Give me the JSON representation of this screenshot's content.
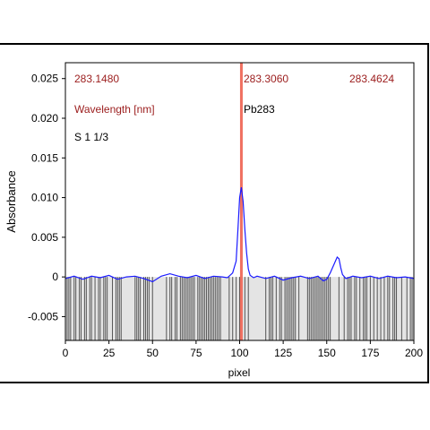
{
  "chart_data": {
    "type": "line",
    "xlabel": "pixel",
    "ylabel": "Absorbance",
    "xlim": [
      0,
      200
    ],
    "ylim": [
      -0.008,
      0.027
    ],
    "xticks": [
      0,
      25,
      50,
      75,
      100,
      125,
      150,
      175,
      200
    ],
    "yticks": [
      {
        "v": 0.025,
        "label": "0.025"
      },
      {
        "v": 0.02,
        "label": "0.020"
      },
      {
        "v": 0.015,
        "label": "0.015"
      },
      {
        "v": 0.01,
        "label": "0.010"
      },
      {
        "v": 0.005,
        "label": "0.005"
      },
      {
        "v": 0,
        "label": "0"
      },
      {
        "v": -0.005,
        "label": "-0.005"
      }
    ],
    "wavelength_labels": {
      "left": "283.1480",
      "center": "283.3060",
      "right": "283.4624"
    },
    "annotations": {
      "unit": "Wavelength [nm]",
      "element": "Pb283",
      "sample": "S 1 1/3"
    },
    "marker_x": 101,
    "series": [
      {
        "points": [
          [
            0,
            -0.0002
          ],
          [
            5,
            0.0001
          ],
          [
            10,
            -0.0003
          ],
          [
            15,
            0.0001
          ],
          [
            20,
            -0.0001
          ],
          [
            25,
            0.0002
          ],
          [
            30,
            -0.0003
          ],
          [
            35,
            0.0
          ],
          [
            40,
            0.0001
          ],
          [
            45,
            -0.0002
          ],
          [
            50,
            -0.0006
          ],
          [
            55,
            0.0001
          ],
          [
            60,
            0.0004
          ],
          [
            65,
            0.0001
          ],
          [
            70,
            -0.0001
          ],
          [
            75,
            0.0002
          ],
          [
            80,
            -0.0002
          ],
          [
            85,
            0.0001
          ],
          [
            90,
            0.0
          ],
          [
            93,
            -0.0001
          ],
          [
            96,
            0.0005
          ],
          [
            98,
            0.002
          ],
          [
            99,
            0.006
          ],
          [
            100,
            0.01
          ],
          [
            101,
            0.0113
          ],
          [
            102,
            0.0095
          ],
          [
            103,
            0.006
          ],
          [
            104,
            0.003
          ],
          [
            105,
            0.001
          ],
          [
            106,
            0.0002
          ],
          [
            108,
            -0.0001
          ],
          [
            110,
            0.0001
          ],
          [
            115,
            -0.0002
          ],
          [
            120,
            0.0001
          ],
          [
            125,
            -0.0004
          ],
          [
            130,
            -0.0001
          ],
          [
            135,
            0.0001
          ],
          [
            140,
            -0.0002
          ],
          [
            145,
            0.0001
          ],
          [
            148,
            -0.0005
          ],
          [
            150,
            -0.0003
          ],
          [
            152,
            0.0005
          ],
          [
            154,
            0.0015
          ],
          [
            156,
            0.0025
          ],
          [
            157,
            0.0023
          ],
          [
            158,
            0.0012
          ],
          [
            159,
            0.0003
          ],
          [
            161,
            -0.0002
          ],
          [
            165,
            0.0001
          ],
          [
            170,
            -0.0001
          ],
          [
            175,
            0.0001
          ],
          [
            180,
            -0.0002
          ],
          [
            185,
            0.0001
          ],
          [
            190,
            -0.0001
          ],
          [
            195,
            0.0
          ],
          [
            200,
            -0.0002
          ]
        ]
      }
    ],
    "baseline_bars_x": [
      1,
      2,
      3,
      5,
      6,
      8,
      9,
      11,
      12,
      14,
      15,
      17,
      19,
      20,
      22,
      23,
      24,
      27,
      29,
      30,
      31,
      32,
      40,
      41,
      42,
      43,
      45,
      46,
      47,
      48,
      50,
      58,
      60,
      61,
      63,
      64,
      66,
      67,
      68,
      69,
      70,
      71,
      72,
      73,
      74,
      76,
      77,
      78,
      79,
      80,
      81,
      82,
      83,
      84,
      85,
      86,
      87,
      88,
      89,
      94,
      96,
      98,
      100,
      103,
      105,
      115,
      117,
      118,
      119,
      121,
      123,
      124,
      126,
      127,
      128,
      129,
      130,
      131,
      132,
      134,
      139,
      140,
      141,
      142,
      143,
      144,
      145,
      146,
      147,
      148,
      149,
      150,
      151,
      152,
      157,
      160,
      162,
      163,
      164,
      166,
      167,
      169,
      171,
      172,
      173,
      175,
      177,
      179,
      181,
      183,
      185,
      186,
      188,
      189,
      190,
      193,
      196,
      198,
      199
    ]
  }
}
